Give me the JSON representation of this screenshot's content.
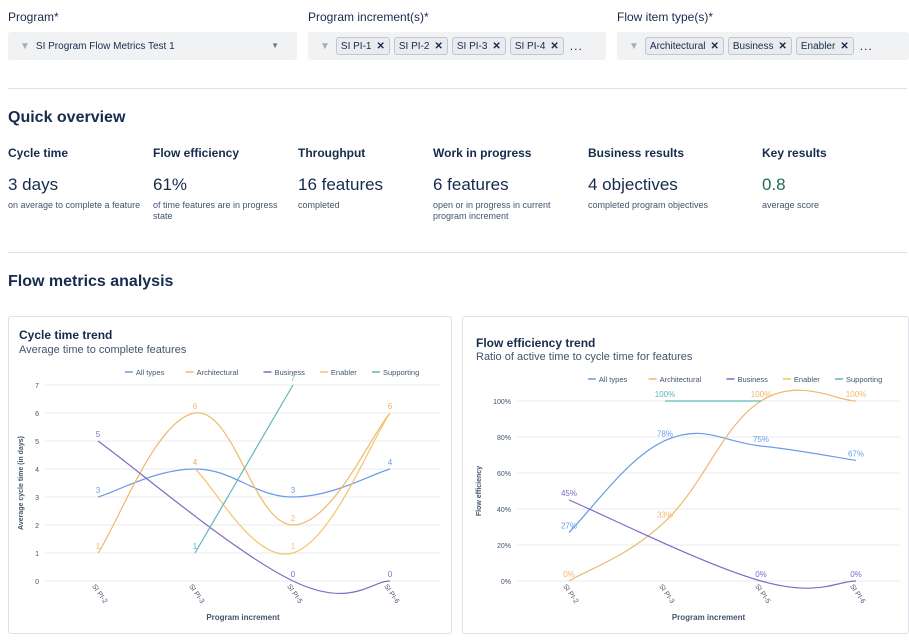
{
  "filters": {
    "program": {
      "label": "Program*",
      "value": "SI Program Flow Metrics Test 1"
    },
    "increments": {
      "label": "Program increment(s)*",
      "chips": [
        "SI PI-1",
        "SI PI-2",
        "SI PI-3",
        "SI PI-4"
      ],
      "more": "..."
    },
    "flow_types": {
      "label": "Flow item type(s)*",
      "chips": [
        "Architectural",
        "Business",
        "Enabler"
      ],
      "more": "..."
    }
  },
  "overview": {
    "title": "Quick overview",
    "metrics": [
      {
        "title": "Cycle time",
        "value": "3 days",
        "desc": "on average to complete a feature"
      },
      {
        "title": "Flow efficiency",
        "value": "61%",
        "desc": "of time features are in progress state"
      },
      {
        "title": "Throughput",
        "value": "16 features",
        "desc": "completed"
      },
      {
        "title": "Work in progress",
        "value": "6 features",
        "desc": "open or in progress in current program increment"
      },
      {
        "title": "Business results",
        "value": "4 objectives",
        "desc": "completed program objectives"
      },
      {
        "title": "Key results",
        "value": "0.8",
        "desc": "average score"
      }
    ]
  },
  "analysis": {
    "title": "Flow metrics analysis"
  },
  "colors": {
    "all_types": "#6b9bea",
    "architectural": "#f0b86a",
    "business": "#7e6bc4",
    "enabler": "#f3c56b",
    "supporting": "#5fb6b8"
  },
  "chart_data": [
    {
      "type": "line",
      "title": "Cycle time trend",
      "subtitle": "Average time to complete features",
      "xlabel": "Program increment",
      "ylabel": "Average cycle time (in days)",
      "categories": [
        "SI PI-2",
        "SI PI-3",
        "SI PI-5",
        "SI PI-6"
      ],
      "ylim": [
        0,
        7
      ],
      "yticks": [
        "0",
        "1",
        "2",
        "3",
        "4",
        "5",
        "6",
        "7"
      ],
      "legend": "top-right",
      "grid": true,
      "series": [
        {
          "name": "All types",
          "values": [
            3,
            4,
            3,
            4
          ],
          "labels": [
            "3",
            "4",
            "3",
            "4"
          ]
        },
        {
          "name": "Architectural",
          "values": [
            1,
            6,
            2,
            6
          ],
          "labels": [
            "1",
            "6",
            "2",
            "6"
          ]
        },
        {
          "name": "Business",
          "values": [
            5,
            null,
            0,
            0
          ],
          "labels": [
            "5",
            "",
            "0",
            "0"
          ]
        },
        {
          "name": "Enabler",
          "values": [
            null,
            4,
            1,
            6
          ],
          "labels": [
            "",
            "4",
            "1",
            "6"
          ]
        },
        {
          "name": "Supporting",
          "values": [
            null,
            1,
            7,
            null
          ],
          "labels": [
            "",
            "1",
            "7",
            ""
          ]
        }
      ]
    },
    {
      "type": "line",
      "title": "Flow efficiency trend",
      "subtitle": "Ratio of active time to cycle time for features",
      "xlabel": "Program increment",
      "ylabel": "Flow efficiency",
      "categories": [
        "SI PI-2",
        "SI PI-3",
        "SI PI-5",
        "SI PI-6"
      ],
      "ylim": [
        0,
        100
      ],
      "yticks": [
        "0%",
        "20%",
        "40%",
        "60%",
        "80%",
        "100%"
      ],
      "legend": "top-right",
      "grid": true,
      "series": [
        {
          "name": "All types",
          "values": [
            27,
            78,
            75,
            67
          ],
          "labels": [
            "27%",
            "78%",
            "75%",
            "67%"
          ]
        },
        {
          "name": "Architectural",
          "values": [
            0,
            33,
            100,
            100
          ],
          "labels": [
            "0%",
            "33%",
            "100%",
            "100%"
          ]
        },
        {
          "name": "Business",
          "values": [
            45,
            null,
            0,
            0
          ],
          "labels": [
            "45%",
            "",
            "0%",
            "0%"
          ]
        },
        {
          "name": "Enabler",
          "values": [
            null,
            null,
            null,
            null
          ],
          "labels": [
            "",
            "",
            "",
            ""
          ]
        },
        {
          "name": "Supporting",
          "values": [
            null,
            100,
            100,
            null
          ],
          "labels": [
            "",
            "100%",
            "",
            ""
          ]
        }
      ]
    }
  ]
}
